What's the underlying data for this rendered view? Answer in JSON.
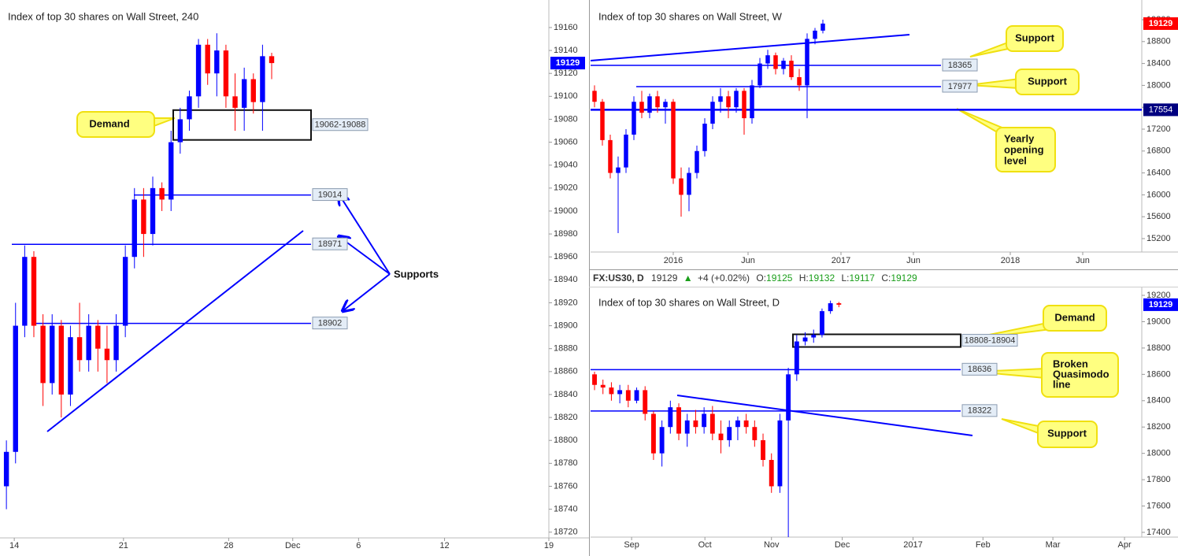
{
  "chart_data": [
    {
      "type": "candlestick",
      "title": "Index of top 30 shares on Wall Street, 240",
      "open": [
        18760,
        18790,
        18900,
        18960,
        18900,
        18850,
        18900,
        18840,
        18890,
        18870,
        18900,
        18880,
        18870,
        18900,
        18960,
        19010,
        18980,
        19020,
        19010,
        19060,
        19080,
        19100,
        19145,
        19120,
        19140,
        19100,
        19090,
        19115,
        19095,
        19135
      ],
      "high": [
        18800,
        18920,
        18970,
        18965,
        18910,
        18910,
        18905,
        18900,
        18920,
        18910,
        18905,
        18900,
        18910,
        18970,
        19020,
        19020,
        19030,
        19025,
        19070,
        19090,
        19105,
        19150,
        19150,
        19155,
        19145,
        19120,
        19125,
        19120,
        19145,
        19138
      ],
      "low": [
        18740,
        18780,
        18890,
        18890,
        18830,
        18840,
        18820,
        18830,
        18860,
        18860,
        18860,
        18850,
        18860,
        18890,
        18950,
        18960,
        18970,
        19000,
        19000,
        19050,
        19070,
        19090,
        19110,
        19100,
        19090,
        19070,
        19070,
        19085,
        19070,
        19115
      ],
      "close": [
        18790,
        18900,
        18960,
        18900,
        18850,
        18900,
        18840,
        18890,
        18870,
        18900,
        18880,
        18870,
        18900,
        18960,
        19010,
        18980,
        19020,
        19010,
        19060,
        19080,
        19100,
        19145,
        19120,
        19140,
        19100,
        19090,
        19115,
        19095,
        19135,
        19129
      ],
      "up_color": "#0000ff",
      "down_color": "#ff0000",
      "xlim": [
        -0.7,
        59.3
      ],
      "xticks": [
        {
          "value": 0.86,
          "label": "14"
        },
        {
          "value": 12.8,
          "label": "21"
        },
        {
          "value": 24.3,
          "label": "28"
        },
        {
          "value": 31.3,
          "label": "Dec"
        },
        {
          "value": 38.5,
          "label": "6"
        },
        {
          "value": 47.9,
          "label": "12"
        },
        {
          "value": 59.3,
          "label": "19"
        }
      ],
      "ylim": [
        18715,
        19184
      ],
      "yticks": [
        18720,
        18740,
        18760,
        18780,
        18800,
        18820,
        18840,
        18860,
        18880,
        18900,
        18920,
        18940,
        18960,
        18980,
        19000,
        19020,
        19040,
        19060,
        19080,
        19100,
        19120,
        19140,
        19160
      ],
      "last_price": 19129,
      "last_price_color": "#0000ff",
      "level_color": "#0000ff",
      "levels": [
        19014,
        18971,
        18902
      ],
      "zones": [
        {
          "label": "19062-19088",
          "low": 19062,
          "high": 19088
        }
      ],
      "annotations": [
        [
          "Demand"
        ],
        [
          "Supports"
        ]
      ]
    },
    {
      "type": "candlestick",
      "title": "Index of top 30 shares on Wall Street, W",
      "open": [
        17900,
        17700,
        17000,
        16400,
        16500,
        17100,
        17700,
        17500,
        17800,
        17600,
        17700,
        16300,
        16000,
        16400,
        16800,
        17300,
        17700,
        17800,
        17600,
        17900,
        17400,
        18000,
        18400,
        18550,
        18300,
        18450,
        18150,
        18000,
        18850,
        19000
      ],
      "high": [
        18000,
        17750,
        17100,
        16700,
        17200,
        17800,
        17900,
        17850,
        17900,
        17750,
        17750,
        16500,
        16500,
        16900,
        17400,
        17800,
        17950,
        17900,
        17950,
        17950,
        18100,
        18500,
        18650,
        18600,
        18500,
        18550,
        18300,
        18950,
        19050,
        19200
      ],
      "low": [
        17600,
        16900,
        16300,
        15300,
        16400,
        17000,
        17400,
        17400,
        17500,
        17300,
        16200,
        15600,
        15700,
        16300,
        16700,
        17200,
        17500,
        17400,
        17500,
        17100,
        17300,
        17950,
        18300,
        18200,
        18200,
        18100,
        17900,
        17400,
        18750,
        18950
      ],
      "close": [
        17700,
        17000,
        16400,
        16500,
        17100,
        17700,
        17500,
        17800,
        17600,
        17700,
        16300,
        16000,
        16400,
        16800,
        17300,
        17700,
        17800,
        17600,
        17900,
        17400,
        18000,
        18400,
        18550,
        18300,
        18450,
        18150,
        18000,
        18850,
        19000,
        19129
      ],
      "up_color": "#0000ff",
      "down_color": "#ff0000",
      "xlim": [
        -0.5,
        69.5
      ],
      "xticks": [
        {
          "value": 10,
          "label": "2016"
        },
        {
          "value": 19.5,
          "label": "Jun"
        },
        {
          "value": 31.3,
          "label": "2017"
        },
        {
          "value": 40.5,
          "label": "Jun"
        },
        {
          "value": 52.8,
          "label": "2018"
        },
        {
          "value": 62,
          "label": "Jun"
        }
      ],
      "ylim": [
        14955,
        19560
      ],
      "yticks": [
        15200,
        15600,
        16000,
        16400,
        16800,
        17200,
        17600,
        18000,
        18400,
        18800,
        19200
      ],
      "last_price": 19129,
      "last_price_color": "#ff0000",
      "level_color": "#0000ff",
      "levels": [
        18365,
        17977,
        17554
      ],
      "zones": [],
      "annotations": [
        [
          "Support"
        ],
        [
          "Support"
        ],
        [
          "Yearly",
          "opening",
          "level"
        ]
      ]
    },
    {
      "type": "candlestick",
      "title": "Index of top 30 shares on Wall Street, D",
      "open": [
        18600,
        18520,
        18500,
        18450,
        18480,
        18400,
        18480,
        18300,
        18000,
        18200,
        18350,
        18150,
        18250,
        18200,
        18300,
        18150,
        18100,
        18200,
        18250,
        18200,
        18100,
        17950,
        17750,
        18250,
        18600,
        18850,
        18880,
        18900,
        19080,
        19140
      ],
      "high": [
        18620,
        18560,
        18540,
        18520,
        18520,
        18500,
        18510,
        18320,
        18250,
        18400,
        18380,
        18300,
        18330,
        18350,
        18360,
        18250,
        18250,
        18280,
        18300,
        18250,
        18150,
        18000,
        18300,
        18650,
        18900,
        18920,
        18940,
        19100,
        19160,
        19150
      ],
      "low": [
        18480,
        18450,
        18400,
        18380,
        18350,
        18380,
        18250,
        17950,
        17900,
        18150,
        18100,
        18050,
        18150,
        18150,
        18100,
        18000,
        18050,
        18100,
        18150,
        18050,
        17900,
        17700,
        17700,
        17280,
        18550,
        18820,
        18840,
        18880,
        19060,
        19110
      ],
      "close": [
        18520,
        18500,
        18450,
        18480,
        18400,
        18480,
        18300,
        18000,
        18200,
        18350,
        18150,
        18250,
        18200,
        18300,
        18150,
        18100,
        18200,
        18250,
        18200,
        18100,
        17950,
        17750,
        18250,
        18600,
        18850,
        18880,
        18900,
        19080,
        19140,
        19129
      ],
      "up_color": "#0000ff",
      "down_color": "#ff0000",
      "xlim": [
        -0.47,
        64.95
      ],
      "xticks": [
        {
          "value": 4.4,
          "label": "Sep"
        },
        {
          "value": 13.1,
          "label": "Oct"
        },
        {
          "value": 21.0,
          "label": "Nov"
        },
        {
          "value": 29.4,
          "label": "Dec"
        },
        {
          "value": 37.8,
          "label": "2017"
        },
        {
          "value": 46.1,
          "label": "Feb"
        },
        {
          "value": 54.4,
          "label": "Mar"
        },
        {
          "value": 62.9,
          "label": "Apr"
        }
      ],
      "ylim": [
        17364,
        19260
      ],
      "yticks": [
        17400,
        17600,
        17800,
        18000,
        18200,
        18400,
        18600,
        18800,
        19000,
        19200
      ],
      "last_price": 19129,
      "last_price_color": "#0000ff",
      "level_color": "#0000ff",
      "levels": [
        18636,
        18322
      ],
      "zones": [
        {
          "label": "18808-18904",
          "low": 18808,
          "high": 18904
        }
      ],
      "annotations": [
        [
          "Demand"
        ],
        [
          "Broken",
          "Quasimodo",
          "line"
        ],
        [
          "Support"
        ]
      ]
    }
  ],
  "ohlc_header": {
    "symbol": "FX:US30, D",
    "last": "19129",
    "arrow": "▲",
    "change": "+4 (+0.02%)",
    "o_label": "O:",
    "o": "19125",
    "h_label": "H:",
    "h": "19132",
    "l_label": "L:",
    "l": "19117",
    "c_label": "C:",
    "c": "19129"
  }
}
